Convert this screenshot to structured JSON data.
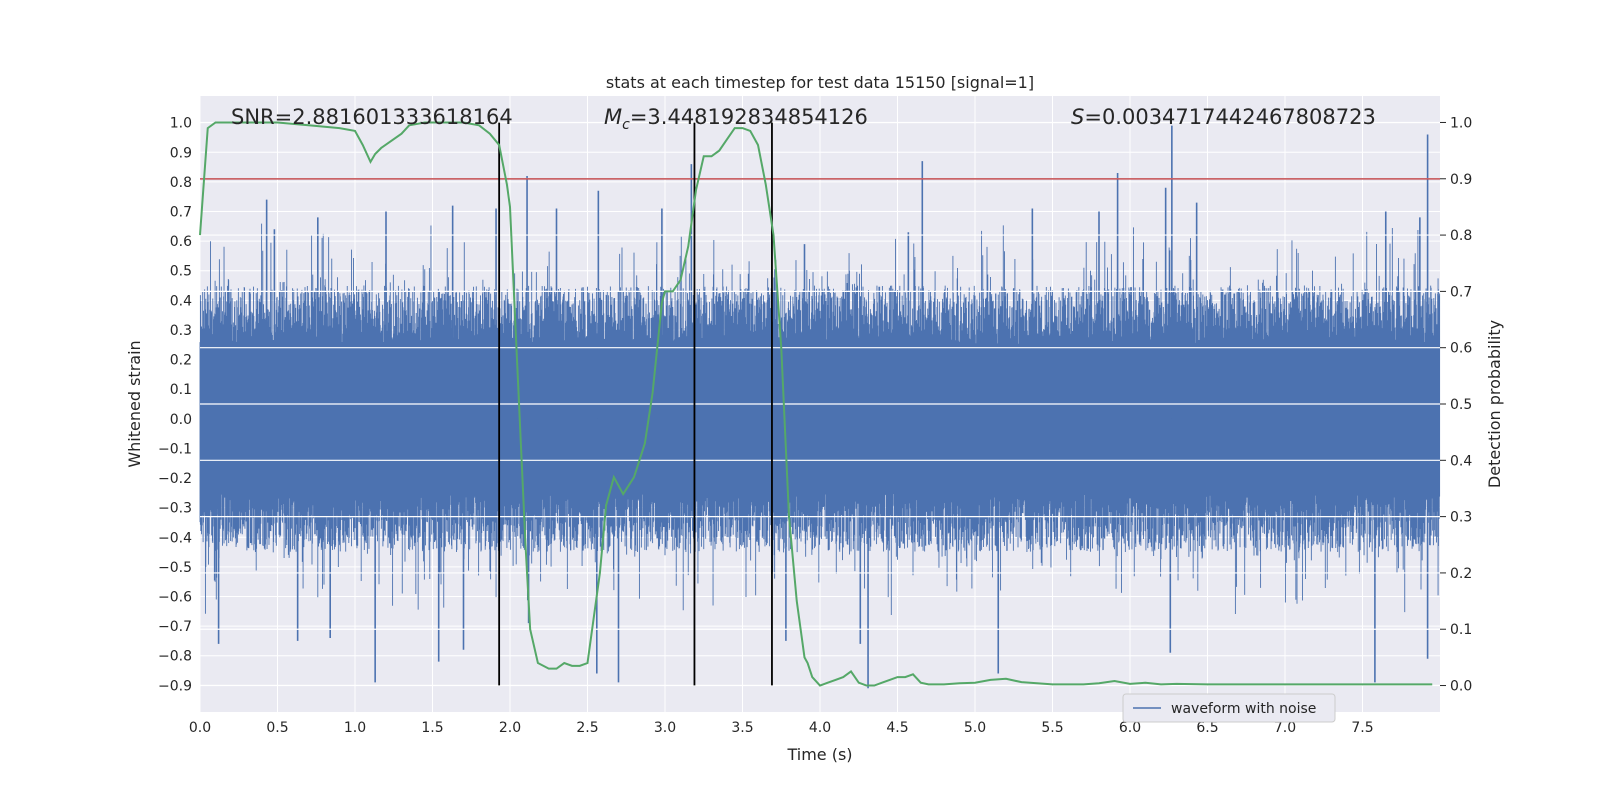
{
  "chart_data": {
    "type": "line",
    "title": "stats at each timestep for test data 15150 [signal=1]",
    "xlabel": "Time (s)",
    "ylabel": "Whitened strain",
    "y2label": "Detection probability",
    "xlim": [
      0,
      8
    ],
    "ylim": [
      -0.99,
      1.09
    ],
    "y2lim": [
      -0.047,
      1.047
    ],
    "grid": true,
    "x_ticks": [
      0.0,
      0.5,
      1.0,
      1.5,
      2.0,
      2.5,
      3.0,
      3.5,
      4.0,
      4.5,
      5.0,
      5.5,
      6.0,
      6.5,
      7.0,
      7.5
    ],
    "x_tick_labels": [
      "0.0",
      "0.5",
      "1.0",
      "1.5",
      "2.0",
      "2.5",
      "3.0",
      "3.5",
      "4.0",
      "4.5",
      "5.0",
      "5.5",
      "6.0",
      "6.5",
      "7.0",
      "7.5"
    ],
    "y_ticks": [
      1.0,
      0.9,
      0.8,
      0.7,
      0.6,
      0.5,
      0.4,
      0.3,
      0.2,
      0.1,
      0.0,
      -0.1,
      -0.2,
      -0.3,
      -0.4,
      -0.5,
      -0.6,
      -0.7,
      -0.8,
      -0.9
    ],
    "y_tick_labels": [
      "1.0",
      "0.9",
      "0.8",
      "0.7",
      "0.6",
      "0.5",
      "0.4",
      "0.3",
      "0.2",
      "0.1",
      "0.0",
      "−0.1",
      "−0.2",
      "−0.3",
      "−0.4",
      "−0.5",
      "−0.6",
      "−0.7",
      "−0.8",
      "−0.9"
    ],
    "y2_ticks": [
      1.0,
      0.9,
      0.8,
      0.7,
      0.6,
      0.5,
      0.4,
      0.3,
      0.2,
      0.1,
      0.0
    ],
    "y2_tick_labels": [
      "1.0",
      "0.9",
      "0.8",
      "0.7",
      "0.6",
      "0.5",
      "0.4",
      "0.3",
      "0.2",
      "0.1",
      "0.0"
    ],
    "annotations": {
      "snr": "SNR=2.881601333618164",
      "mc_symbol": "M",
      "mc_sub": "c",
      "mc_value": "=3.448192834854126",
      "s_symbol": "S",
      "s_value": "=0.0034717442467808723"
    },
    "vlines": [
      1.93,
      3.19,
      3.69
    ],
    "threshold": 0.81,
    "legend": {
      "label": "waveform with noise",
      "position": "lower-right"
    },
    "colors": {
      "waveform": "#4c72b0",
      "probability": "#55a868",
      "threshold": "#c44e52",
      "vlines": "#000000",
      "background": "#eaeaf2",
      "grid": "#ffffff"
    },
    "waveform_envelope": {
      "description_values": "typical peak amplitude about 0.45, dense core about 0.25",
      "peak": 0.45,
      "core": 0.25
    },
    "waveform_spikes": [
      {
        "x": 0.43,
        "y": 0.74
      },
      {
        "x": 0.48,
        "y": 0.64
      },
      {
        "x": 0.76,
        "y": 0.68
      },
      {
        "x": 1.2,
        "y": 0.7
      },
      {
        "x": 1.63,
        "y": 0.72
      },
      {
        "x": 1.91,
        "y": 0.71
      },
      {
        "x": 2.11,
        "y": 0.82
      },
      {
        "x": 2.3,
        "y": 0.71
      },
      {
        "x": 2.57,
        "y": 0.77
      },
      {
        "x": 2.98,
        "y": 0.71
      },
      {
        "x": 3.17,
        "y": 0.86
      },
      {
        "x": 3.9,
        "y": 0.59
      },
      {
        "x": 4.57,
        "y": 0.63
      },
      {
        "x": 4.66,
        "y": 0.87
      },
      {
        "x": 5.37,
        "y": 0.71
      },
      {
        "x": 5.8,
        "y": 0.7
      },
      {
        "x": 5.92,
        "y": 0.83
      },
      {
        "x": 6.23,
        "y": 0.78
      },
      {
        "x": 6.27,
        "y": 0.99
      },
      {
        "x": 6.43,
        "y": 0.73
      },
      {
        "x": 7.65,
        "y": 0.7
      },
      {
        "x": 7.87,
        "y": 0.68
      },
      {
        "x": 7.92,
        "y": 0.96
      },
      {
        "x": 0.12,
        "y": -0.76
      },
      {
        "x": 0.63,
        "y": -0.75
      },
      {
        "x": 0.84,
        "y": -0.74
      },
      {
        "x": 1.13,
        "y": -0.89
      },
      {
        "x": 1.54,
        "y": -0.82
      },
      {
        "x": 1.7,
        "y": -0.78
      },
      {
        "x": 2.12,
        "y": -0.69
      },
      {
        "x": 2.56,
        "y": -0.86
      },
      {
        "x": 2.7,
        "y": -0.89
      },
      {
        "x": 3.78,
        "y": -0.75
      },
      {
        "x": 4.26,
        "y": -0.76
      },
      {
        "x": 4.31,
        "y": -0.91
      },
      {
        "x": 5.15,
        "y": -0.86
      },
      {
        "x": 6.26,
        "y": -0.79
      },
      {
        "x": 7.58,
        "y": -0.89
      },
      {
        "x": 7.92,
        "y": -0.81
      }
    ],
    "series": [
      {
        "name": "waveform with noise",
        "axis": "left"
      },
      {
        "axis": "right",
        "x": [
          0.0,
          0.05,
          0.1,
          0.2,
          0.3,
          0.5,
          0.7,
          0.9,
          1.0,
          1.05,
          1.1,
          1.13,
          1.17,
          1.3,
          1.35,
          1.45,
          1.5,
          1.6,
          1.7,
          1.8,
          1.87,
          1.93,
          1.98,
          2.0,
          2.05,
          2.1,
          2.13,
          2.18,
          2.25,
          2.3,
          2.35,
          2.4,
          2.45,
          2.5,
          2.53,
          2.58,
          2.62,
          2.67,
          2.73,
          2.8,
          2.87,
          2.92,
          2.98,
          3.0,
          3.05,
          3.1,
          3.15,
          3.2,
          3.25,
          3.3,
          3.35,
          3.4,
          3.45,
          3.5,
          3.55,
          3.6,
          3.65,
          3.7,
          3.75,
          3.8,
          3.85,
          3.9,
          3.92,
          3.95,
          4.0,
          4.05,
          4.1,
          4.15,
          4.2,
          4.25,
          4.3,
          4.35,
          4.4,
          4.5,
          4.55,
          4.6,
          4.65,
          4.7,
          4.8,
          4.9,
          5.0,
          5.1,
          5.2,
          5.3,
          5.5,
          5.7,
          5.8,
          5.9,
          6.0,
          6.1,
          6.2,
          6.3,
          6.5,
          7.0,
          7.5,
          7.6,
          7.8,
          7.95
        ],
        "y": [
          0.8,
          0.99,
          1.0,
          1.0,
          1.0,
          1.0,
          0.995,
          0.99,
          0.985,
          0.96,
          0.93,
          0.944,
          0.955,
          0.98,
          0.995,
          1.0,
          1.0,
          1.0,
          1.0,
          0.995,
          0.98,
          0.96,
          0.89,
          0.85,
          0.55,
          0.25,
          0.1,
          0.04,
          0.03,
          0.03,
          0.04,
          0.035,
          0.035,
          0.04,
          0.1,
          0.2,
          0.32,
          0.37,
          0.34,
          0.37,
          0.43,
          0.52,
          0.68,
          0.7,
          0.7,
          0.72,
          0.78,
          0.88,
          0.94,
          0.94,
          0.95,
          0.97,
          0.99,
          0.99,
          0.985,
          0.96,
          0.89,
          0.8,
          0.6,
          0.3,
          0.15,
          0.05,
          0.04,
          0.015,
          0.0,
          0.005,
          0.01,
          0.015,
          0.025,
          0.005,
          0.0,
          0.0,
          0.005,
          0.015,
          0.015,
          0.02,
          0.005,
          0.002,
          0.002,
          0.004,
          0.005,
          0.01,
          0.012,
          0.006,
          0.002,
          0.002,
          0.004,
          0.008,
          0.003,
          0.005,
          0.002,
          0.003,
          0.002,
          0.002,
          0.002,
          0.002,
          0.002,
          0.002
        ]
      }
    ]
  }
}
